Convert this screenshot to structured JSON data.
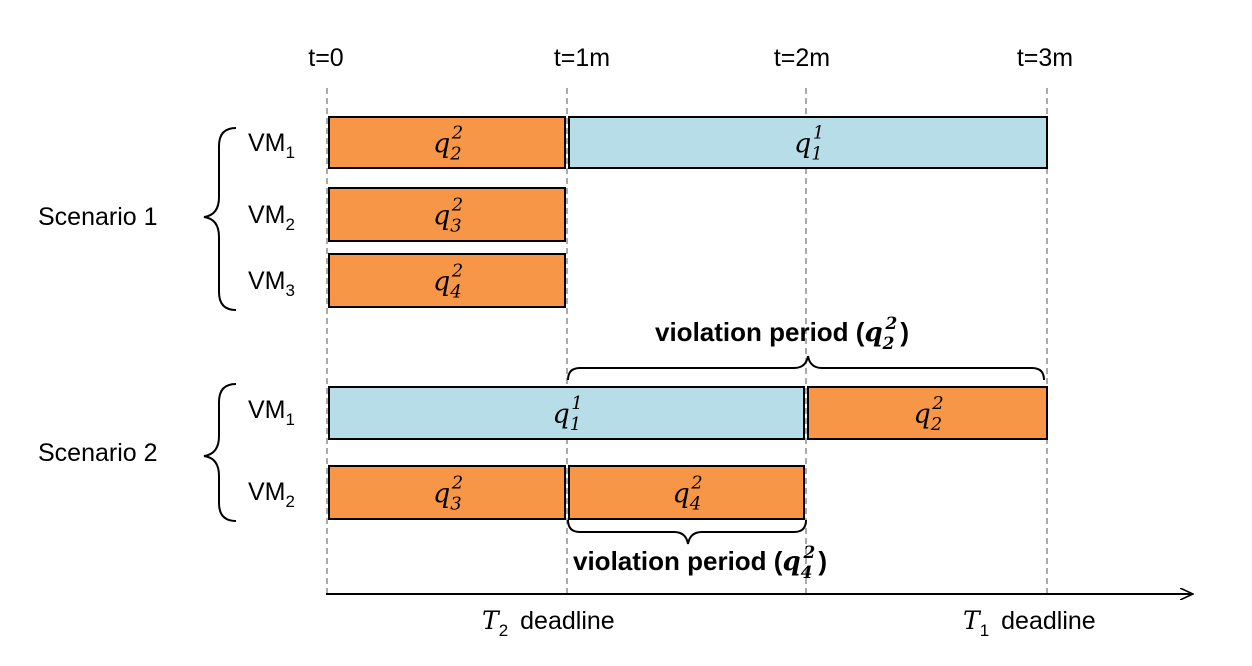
{
  "colors": {
    "orange": "#f79646",
    "blue": "#b7dde8",
    "grid": "#aaaaaa",
    "outline": "#000000"
  },
  "time_labels": [
    "t=0",
    "t=1m",
    "t=2m",
    "t=3m"
  ],
  "scenario1": {
    "label": "Scenario 1",
    "rows": [
      {
        "vm": "VM",
        "vm_sub": "1"
      },
      {
        "vm": "VM",
        "vm_sub": "2"
      },
      {
        "vm": "VM",
        "vm_sub": "3"
      }
    ],
    "tasks": [
      {
        "q": "q",
        "sub": "2",
        "sup": "2",
        "row": 0,
        "start": 0,
        "end": 1,
        "color": "orange"
      },
      {
        "q": "q",
        "sub": "1",
        "sup": "1",
        "row": 0,
        "start": 1,
        "end": 3,
        "color": "blue"
      },
      {
        "q": "q",
        "sub": "3",
        "sup": "2",
        "row": 1,
        "start": 0,
        "end": 1,
        "color": "orange"
      },
      {
        "q": "q",
        "sub": "4",
        "sup": "2",
        "row": 2,
        "start": 0,
        "end": 1,
        "color": "orange"
      }
    ]
  },
  "scenario2": {
    "label": "Scenario 2",
    "rows": [
      {
        "vm": "VM",
        "vm_sub": "1"
      },
      {
        "vm": "VM",
        "vm_sub": "2"
      }
    ],
    "tasks": [
      {
        "q": "q",
        "sub": "1",
        "sup": "1",
        "row": 0,
        "start": 0,
        "end": 2,
        "color": "blue"
      },
      {
        "q": "q",
        "sub": "2",
        "sup": "2",
        "row": 0,
        "start": 2,
        "end": 3,
        "color": "orange"
      },
      {
        "q": "q",
        "sub": "3",
        "sup": "2",
        "row": 1,
        "start": 0,
        "end": 1,
        "color": "orange"
      },
      {
        "q": "q",
        "sub": "4",
        "sup": "2",
        "row": 1,
        "start": 1,
        "end": 2,
        "color": "orange"
      }
    ]
  },
  "violations": [
    {
      "text": "violation period (",
      "q": "q",
      "sub": "2",
      "sup": "2",
      "close": ")",
      "start": 1,
      "end": 3
    },
    {
      "text": "violation period (",
      "q": "q",
      "sub": "4",
      "sup": "2",
      "close": ")",
      "start": 1,
      "end": 2
    }
  ],
  "deadlines": [
    {
      "T": "T",
      "sub": "2",
      "text": "deadline"
    },
    {
      "T": "T",
      "sub": "1",
      "text": "deadline"
    }
  ]
}
